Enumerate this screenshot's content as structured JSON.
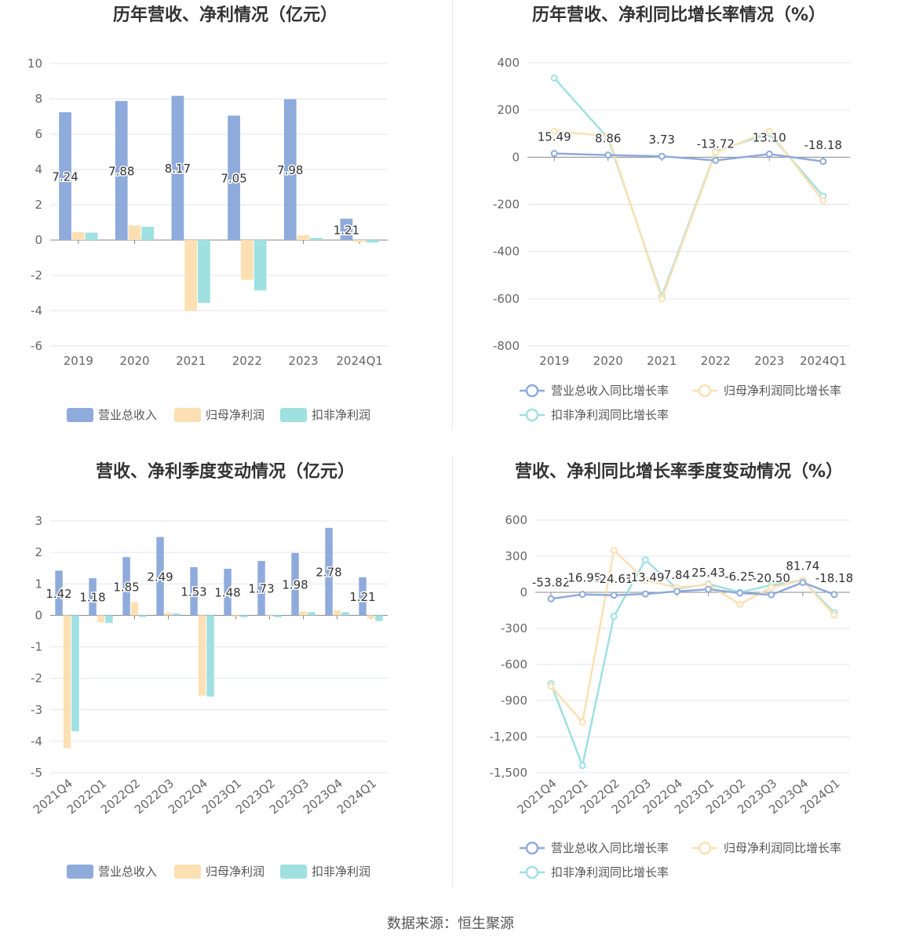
{
  "colors": {
    "revenue": "#8eabdb",
    "parent_profit": "#fce0b3",
    "nonrecurring_profit": "#9fe0e1",
    "grid": "#e3e6f0",
    "zero": "#888888"
  },
  "footer": {
    "label": "数据来源：",
    "source": "恒生聚源"
  },
  "chart_data": [
    {
      "type": "bar",
      "title": "历年营收、净利情况（亿元）",
      "categories": [
        "2019",
        "2020",
        "2021",
        "2022",
        "2023",
        "2024Q1"
      ],
      "ylim": [
        -6,
        10
      ],
      "yticks": [
        10,
        8,
        6,
        4,
        2,
        0,
        -2,
        -4,
        -6
      ],
      "series": [
        {
          "name": "营业总收入",
          "values": [
            7.24,
            7.88,
            8.17,
            7.05,
            7.98,
            1.21
          ],
          "labels": [
            "7.24",
            "7.88",
            "8.17",
            "7.05",
            "7.98",
            "1.21"
          ]
        },
        {
          "name": "归母净利润",
          "values": [
            0.45,
            0.82,
            -4.02,
            -2.25,
            0.28,
            -0.1
          ]
        },
        {
          "name": "扣非净利润",
          "values": [
            0.42,
            0.75,
            -3.55,
            -2.85,
            0.12,
            -0.14
          ]
        }
      ],
      "legend": "bottom",
      "grid": true
    },
    {
      "type": "line",
      "title": "历年营收、净利同比增长率情况（%）",
      "categories": [
        "2019",
        "2020",
        "2021",
        "2022",
        "2023",
        "2024Q1"
      ],
      "ylim": [
        -800,
        400
      ],
      "yticks": [
        400,
        200,
        0,
        -200,
        -400,
        -600,
        -800
      ],
      "series": [
        {
          "name": "营业总收入同比增长率",
          "values": [
            15.49,
            8.86,
            3.73,
            -13.72,
            13.1,
            -18.18
          ],
          "labels": [
            "15.49",
            "8.86",
            "3.73",
            "-13.72",
            "13.10",
            "-18.18"
          ]
        },
        {
          "name": "归母净利润同比增长率",
          "values": [
            110,
            90,
            -600,
            20,
            110,
            -185
          ]
        },
        {
          "name": "扣非净利润同比增长率",
          "values": [
            335,
            80,
            -590,
            25,
            100,
            -165
          ]
        }
      ],
      "legend": "bottom",
      "grid": true
    },
    {
      "type": "bar",
      "title": "营收、净利季度变动情况（亿元）",
      "categories": [
        "2021Q4",
        "2022Q1",
        "2022Q2",
        "2022Q3",
        "2022Q4",
        "2023Q1",
        "2023Q2",
        "2023Q3",
        "2023Q4",
        "2024Q1"
      ],
      "ylim": [
        -5,
        3
      ],
      "yticks": [
        3,
        2,
        1,
        0,
        -1,
        -2,
        -3,
        -4,
        -5
      ],
      "series": [
        {
          "name": "营业总收入",
          "values": [
            1.42,
            1.18,
            1.85,
            2.49,
            1.53,
            1.48,
            1.73,
            1.98,
            2.78,
            1.21
          ],
          "labels": [
            "1.42",
            "1.18",
            "1.85",
            "2.49",
            "1.53",
            "1.48",
            "1.73",
            "1.98",
            "2.78",
            "1.21"
          ]
        },
        {
          "name": "归母净利润",
          "values": [
            -4.22,
            -0.22,
            0.42,
            0.08,
            -2.55,
            -0.04,
            -0.03,
            0.12,
            0.16,
            -0.1
          ]
        },
        {
          "name": "扣非净利润",
          "values": [
            -3.68,
            -0.24,
            -0.05,
            0.06,
            -2.58,
            -0.06,
            -0.06,
            0.1,
            0.1,
            -0.18
          ]
        }
      ],
      "legend": "bottom",
      "grid": true
    },
    {
      "type": "line",
      "title": "营收、净利同比增长率季度变动情况（%）",
      "categories": [
        "2021Q4",
        "2022Q1",
        "2022Q2",
        "2022Q3",
        "2022Q4",
        "2023Q1",
        "2023Q2",
        "2023Q3",
        "2023Q4",
        "2024Q1"
      ],
      "ylim": [
        -1500,
        600
      ],
      "yticks": [
        600,
        300,
        0,
        -300,
        -600,
        -900,
        -1200,
        -1500
      ],
      "ytick_labels": [
        "600",
        "300",
        "0",
        "-300",
        "-600",
        "-900",
        "-1,200",
        "-1,500"
      ],
      "series": [
        {
          "name": "营业总收入同比增长率",
          "values": [
            -53.82,
            -16.95,
            -24.61,
            -13.49,
            7.84,
            25.43,
            -6.25,
            -20.5,
            81.74,
            -18.18
          ],
          "labels": [
            "-53.82",
            "-16.95",
            "-24.61",
            "-13.49",
            "7.84",
            "25.43",
            "-6.25",
            "-20.50",
            "81.74",
            "-18.18"
          ]
        },
        {
          "name": "归母净利润同比增长率",
          "values": [
            -780,
            -1080,
            350,
            100,
            40,
            65,
            -100,
            40,
            100,
            -190
          ]
        },
        {
          "name": "扣非净利润同比增长率",
          "values": [
            -760,
            -1440,
            -200,
            270,
            30,
            70,
            0,
            60,
            100,
            -170
          ]
        }
      ],
      "legend": "bottom",
      "grid": true
    }
  ]
}
